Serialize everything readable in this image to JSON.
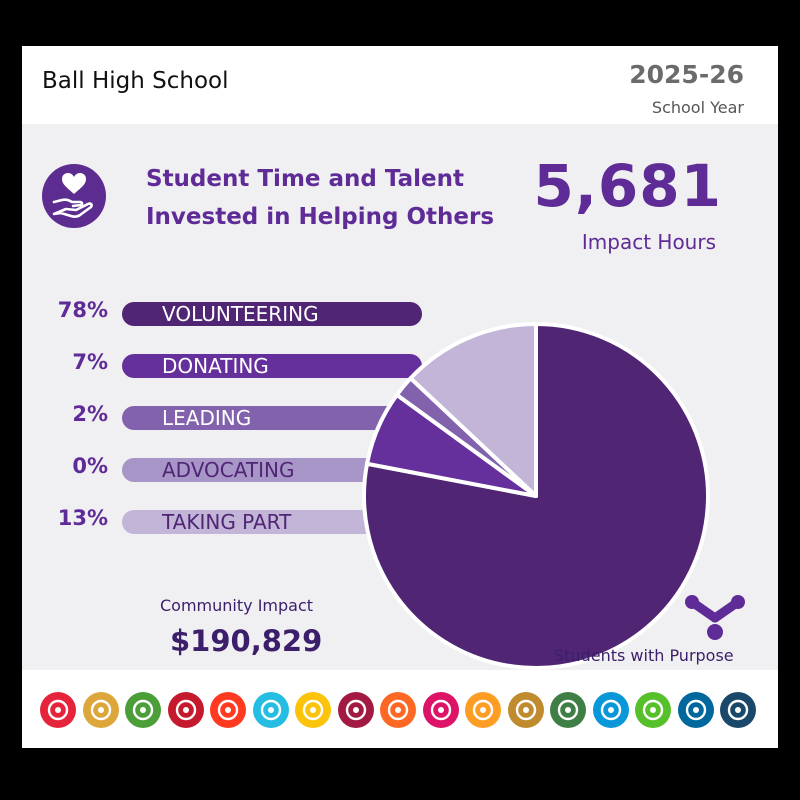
{
  "header": {
    "school": "Ball High School",
    "year": "2025-26",
    "year_label": "School Year"
  },
  "headline": {
    "line1": "Student Time and Talent",
    "line2": "Invested in Helping Others"
  },
  "impact": {
    "hours": "5,681",
    "hours_label": "Impact Hours"
  },
  "chart_data": {
    "type": "pie",
    "categories": [
      "VOLUNTEERING",
      "DONATING",
      "LEADING",
      "ADVOCATING",
      "TAKING PART"
    ],
    "values": [
      78,
      7,
      2,
      0,
      13
    ],
    "value_labels": [
      "78%",
      "7%",
      "2%",
      "0%",
      "13%"
    ],
    "colors": [
      "#4f2574",
      "#652f9c",
      "#8262ad",
      "#a895c8",
      "#c2b5d8"
    ],
    "label_colors": [
      "#ffffff",
      "#ffffff",
      "#ffffff",
      "#4f2574",
      "#4f2574"
    ]
  },
  "community": {
    "label": "Community Impact",
    "value": "$190,829"
  },
  "brand": {
    "label": "Students with Purpose",
    "color": "#5e2b97"
  },
  "sdg_icons": [
    {
      "name": "no-poverty-icon",
      "color": "#e5243b"
    },
    {
      "name": "zero-hunger-icon",
      "color": "#dda63a"
    },
    {
      "name": "good-health-icon",
      "color": "#4c9f38"
    },
    {
      "name": "quality-education-icon",
      "color": "#c5192d"
    },
    {
      "name": "gender-equality-icon",
      "color": "#ff3a21"
    },
    {
      "name": "clean-water-icon",
      "color": "#26bde2"
    },
    {
      "name": "clean-energy-icon",
      "color": "#fcc30b"
    },
    {
      "name": "decent-work-icon",
      "color": "#a21942"
    },
    {
      "name": "industry-innovation-icon",
      "color": "#fd6925"
    },
    {
      "name": "reduced-inequalities-icon",
      "color": "#dd1367"
    },
    {
      "name": "sustainable-cities-icon",
      "color": "#fd9d24"
    },
    {
      "name": "responsible-consumption-icon",
      "color": "#bf8b2e"
    },
    {
      "name": "climate-action-icon",
      "color": "#3f7e44"
    },
    {
      "name": "life-below-water-icon",
      "color": "#0a97d9"
    },
    {
      "name": "life-on-land-icon",
      "color": "#56c02b"
    },
    {
      "name": "peace-justice-icon",
      "color": "#00689d"
    },
    {
      "name": "partnerships-icon",
      "color": "#19486a"
    }
  ]
}
